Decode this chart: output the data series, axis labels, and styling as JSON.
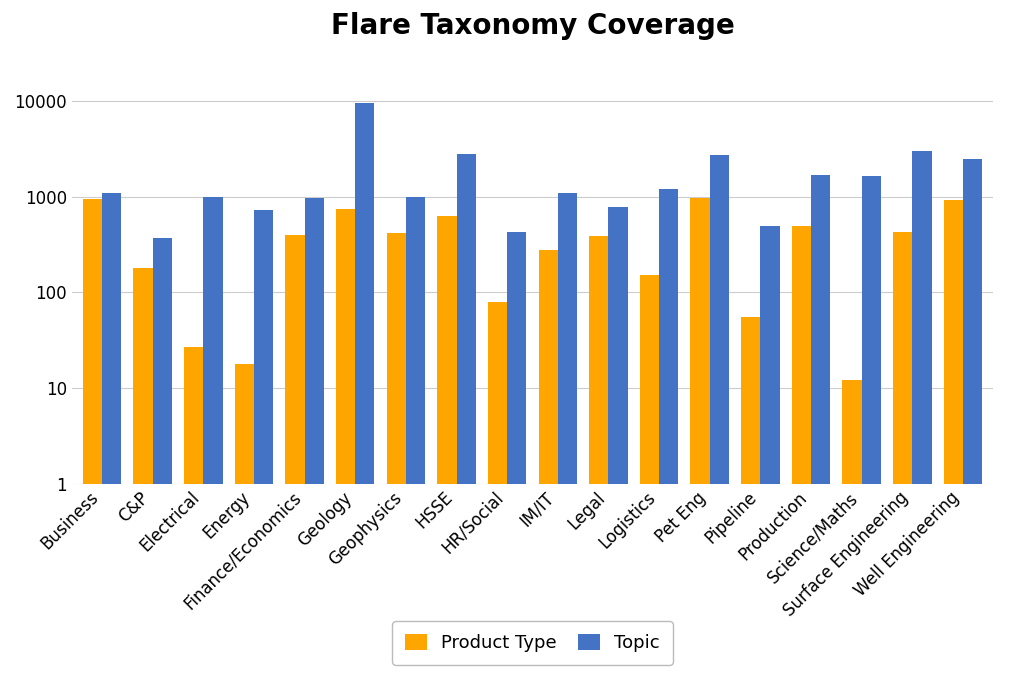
{
  "title": "Flare Taxonomy Coverage",
  "categories": [
    "Business",
    "C&P",
    "Electrical",
    "Energy",
    "Finance/Economics",
    "Geology",
    "Geophysics",
    "HSSE",
    "HR/Social",
    "IM/IT",
    "Legal",
    "Logistics",
    "Pet Eng",
    "Pipeline",
    "Production",
    "Science/Maths",
    "Surface Engineering",
    "Well Engineering"
  ],
  "product_type": [
    950,
    180,
    27,
    18,
    400,
    750,
    420,
    620,
    80,
    280,
    390,
    150,
    970,
    55,
    490,
    12,
    430,
    930
  ],
  "topic": [
    1080,
    370,
    980,
    720,
    970,
    9500,
    980,
    2800,
    430,
    1080,
    780,
    1200,
    2700,
    490,
    1700,
    1650,
    3000,
    2500
  ],
  "product_type_color": "#FFA500",
  "topic_color": "#4472C4",
  "background_color": "#FFFFFF",
  "ylim_min": 1,
  "ylim_max": 30000,
  "ytick_labels": [
    "1",
    "10",
    "100",
    "1000",
    "10000"
  ],
  "ytick_values": [
    1,
    10,
    100,
    1000,
    10000
  ],
  "legend_labels": [
    "Product Type",
    "Topic"
  ],
  "title_fontsize": 20,
  "tick_label_fontsize": 12
}
